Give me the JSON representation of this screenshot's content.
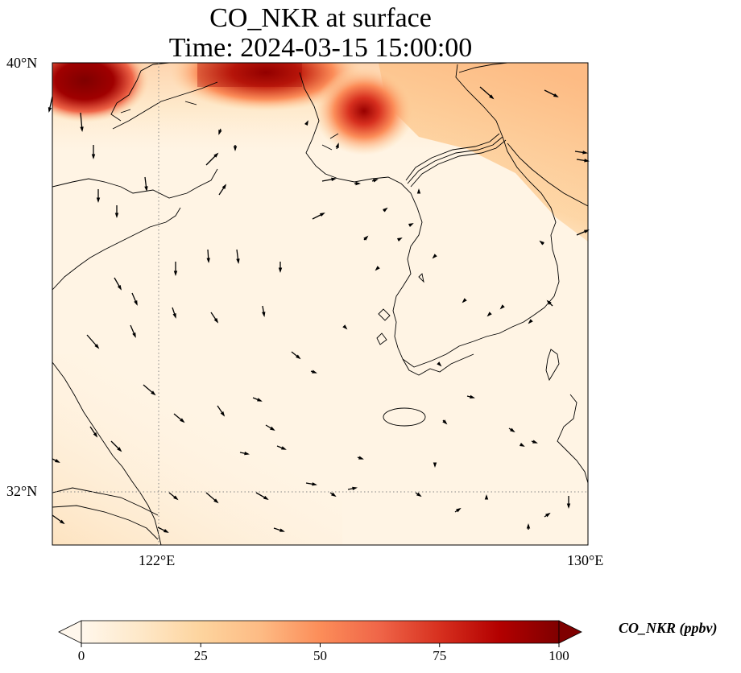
{
  "title": {
    "line1": "CO_NKR at surface",
    "line2": "Time: 2024-03-15 15:00:00"
  },
  "map": {
    "lon_range": [
      120,
      130
    ],
    "lat_range": [
      31,
      40
    ],
    "gridlines": {
      "lon": 122,
      "lat": 32,
      "style": "dotted",
      "color": "#888888"
    },
    "lat_ticks": [
      {
        "label": "40°N",
        "lat": 40
      },
      {
        "label": "32°N",
        "lat": 32
      }
    ],
    "lon_ticks": [
      {
        "label": "122°E",
        "lon": 122
      },
      {
        "label": "130°E",
        "lon": 130
      }
    ],
    "hotspots": [
      {
        "name": "northwest-plume",
        "lon": 120.7,
        "lat": 39.7,
        "value": 100
      },
      {
        "name": "north-central-plume",
        "lon": 124.0,
        "lat": 39.8,
        "value": 90
      },
      {
        "name": "north-korea-west-plume",
        "lon": 125.7,
        "lat": 39.0,
        "value": 95
      },
      {
        "name": "northeast-background",
        "lon": 129.0,
        "lat": 38.9,
        "value": 25
      }
    ],
    "background_value": 4
  },
  "colorbar": {
    "label": "CO_NKR (ppbv)",
    "colormap": "OrRd",
    "min": 0,
    "max": 100,
    "extend": "both",
    "ticks": [
      "0",
      "25",
      "50",
      "75",
      "100"
    ],
    "colors": [
      "#fff7ec",
      "#fee8c8",
      "#fdd49e",
      "#fdbb84",
      "#fc8d59",
      "#ef6548",
      "#d7301f",
      "#b30000",
      "#7f0000"
    ]
  }
}
